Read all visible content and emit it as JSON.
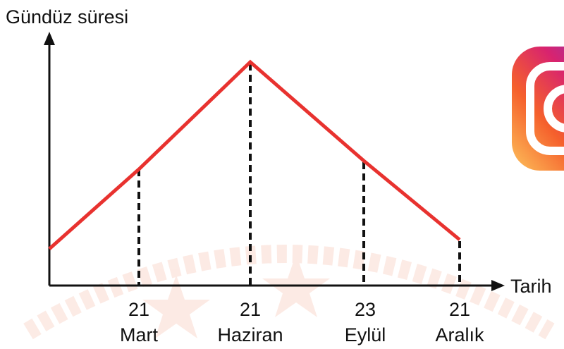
{
  "axes": {
    "y_label": "Gündüz süresi",
    "x_label": "Tarih"
  },
  "dates": [
    {
      "day": "21",
      "month": "Mart"
    },
    {
      "day": "21",
      "month": "Haziran"
    },
    {
      "day": "23",
      "month": "Eylül"
    },
    {
      "day": "21",
      "month": "Aralık"
    }
  ]
}
